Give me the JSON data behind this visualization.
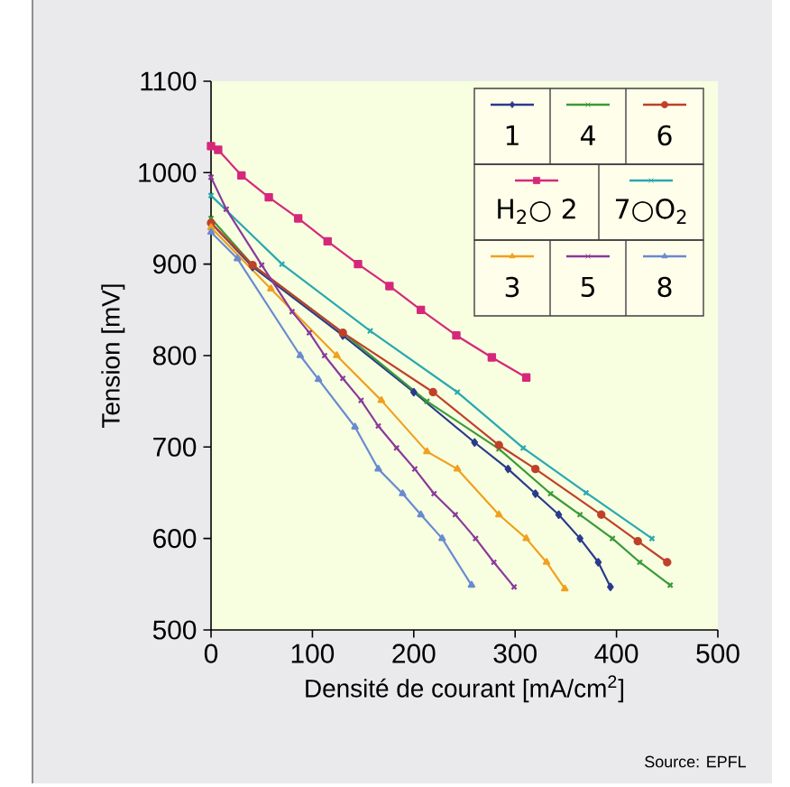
{
  "chart_data": {
    "type": "line",
    "xlabel": "Densité de courant [mA/cm$^{2}$]",
    "ylabel": "Tension [mV]",
    "xlim": [
      0,
      500
    ],
    "ylim": [
      500,
      1100
    ],
    "xticks": [
      0,
      100,
      200,
      300,
      400,
      500
    ],
    "yticks": [
      500,
      600,
      700,
      800,
      900,
      1000,
      1100
    ],
    "legend": "top right",
    "line_style": "solid",
    "annotations": [
      "Source: EPFL"
    ],
    "series": [
      {
        "name": "1",
        "color": "#2a3a8c",
        "marker": "diamond",
        "x": [
          0,
          41,
          130,
          200,
          260,
          293,
          320,
          343,
          364,
          382,
          394
        ],
        "values": [
          945,
          897,
          822,
          760,
          705,
          676,
          649,
          626,
          600,
          574,
          547
        ]
      },
      {
        "name": "4",
        "color": "#3a9a3a",
        "marker": "cross",
        "x": [
          0,
          41,
          130,
          213,
          284,
          335,
          364,
          396,
          423,
          453
        ],
        "values": [
          950,
          899,
          825,
          750,
          698,
          649,
          626,
          600,
          574,
          549
        ]
      },
      {
        "name": "6",
        "color": "#c0402a",
        "marker": "circle",
        "x": [
          0,
          41,
          130,
          219,
          284,
          320,
          385,
          421,
          450
        ],
        "values": [
          945,
          899,
          825,
          760,
          702,
          676,
          626,
          597,
          574
        ]
      },
      {
        "name": "H$_{2}$○ 2",
        "color": "#d6287a",
        "marker": "square",
        "x": [
          0,
          7,
          30,
          57,
          86,
          115,
          145,
          176,
          207,
          242,
          277,
          311
        ],
        "values": [
          1029,
          1025,
          997,
          973,
          950,
          925,
          900,
          876,
          850,
          822,
          798,
          776
        ]
      },
      {
        "name": "7○O$_{2}$",
        "color": "#2aa8b0",
        "marker": "cross",
        "x": [
          0,
          70,
          157,
          243,
          308,
          370,
          435
        ],
        "values": [
          975,
          900,
          827,
          760,
          699,
          650,
          600
        ]
      },
      {
        "name": "3",
        "color": "#f0a020",
        "marker": "triangle",
        "x": [
          0,
          59,
          124,
          168,
          213,
          243,
          284,
          311,
          331,
          349
        ],
        "values": [
          940,
          873,
          800,
          751,
          695,
          676,
          626,
          600,
          574,
          545
        ]
      },
      {
        "name": "5",
        "color": "#8a3a9a",
        "marker": "cross",
        "x": [
          0,
          15,
          50,
          80,
          97,
          112,
          130,
          148,
          165,
          183,
          201,
          220,
          241,
          261,
          279,
          299
        ],
        "values": [
          995,
          960,
          899,
          848,
          825,
          800,
          775,
          751,
          723,
          699,
          676,
          649,
          626,
          600,
          574,
          547
        ]
      },
      {
        "name": "8",
        "color": "#6a8ad0",
        "marker": "triangle",
        "x": [
          0,
          26,
          88,
          106,
          142,
          165,
          189,
          207,
          228,
          257
        ],
        "values": [
          935,
          906,
          800,
          774,
          722,
          676,
          649,
          626,
          600,
          549
        ]
      }
    ]
  }
}
